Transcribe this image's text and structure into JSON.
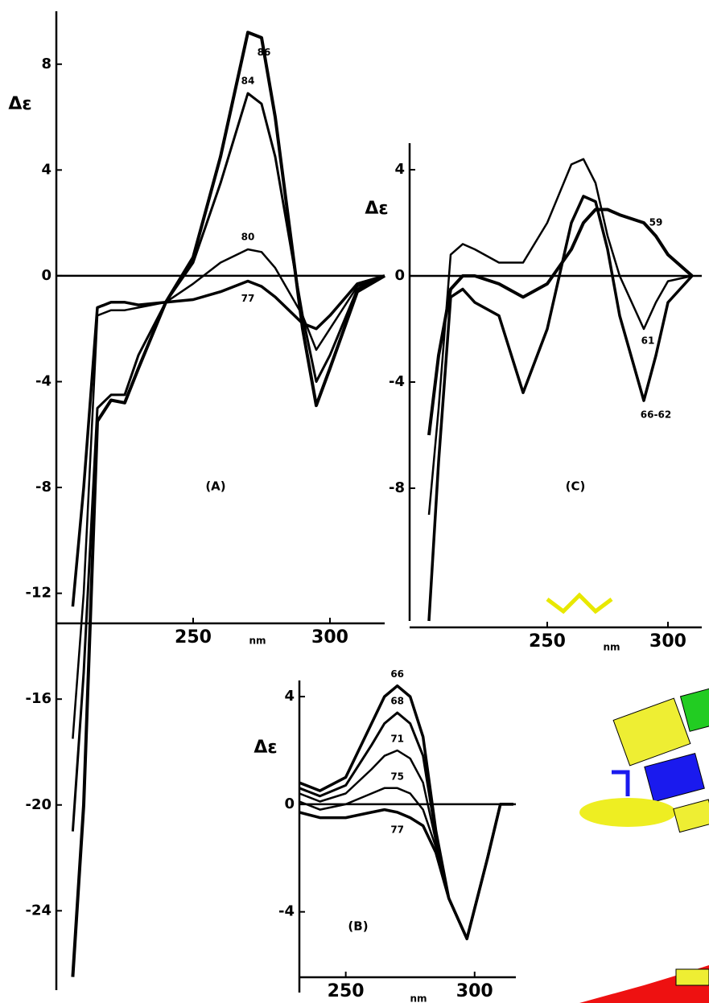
{
  "chart_data": [
    {
      "type": "line",
      "panel": "(A)",
      "y_label": "Δε",
      "x_label": "nm",
      "x": [
        206,
        210,
        215,
        220,
        225,
        230,
        240,
        250,
        260,
        270,
        275,
        280,
        290,
        295,
        300,
        310,
        320
      ],
      "xlim": [
        200,
        320
      ],
      "xticks": [
        250,
        300
      ],
      "ylim": [
        -27,
        10
      ],
      "yticks": [
        8,
        4,
        0,
        -4,
        -8,
        -12,
        -16,
        -20,
        -24
      ],
      "series": [
        {
          "name": "86",
          "color": "#000000",
          "values": [
            -26.5,
            -20,
            -5.5,
            -4.7,
            -4.8,
            -3.5,
            -1,
            0.7,
            4.5,
            9.2,
            9,
            6,
            -2,
            -4.9,
            -3.5,
            -0.6,
            0
          ]
        },
        {
          "name": "84",
          "color": "#000000",
          "values": [
            -21,
            -15,
            -5,
            -4.5,
            -4.5,
            -3,
            -1,
            0.5,
            3.5,
            6.9,
            6.5,
            4.5,
            -1.5,
            -4,
            -3,
            -0.5,
            0
          ]
        },
        {
          "name": "80",
          "color": "#000000",
          "values": [
            -17.5,
            -12,
            -1.5,
            -1.3,
            -1.3,
            -1.2,
            -1,
            -0.3,
            0.5,
            1,
            0.9,
            0.3,
            -1.5,
            -2.8,
            -2,
            -0.4,
            0
          ]
        },
        {
          "name": "77",
          "color": "#000000",
          "values": [
            -12.5,
            -8,
            -1.2,
            -1,
            -1,
            -1.1,
            -1,
            -0.9,
            -0.6,
            -0.2,
            -0.4,
            -0.8,
            -1.8,
            -2,
            -1.5,
            -0.3,
            0
          ]
        }
      ]
    },
    {
      "type": "line",
      "panel": "(C)",
      "y_label": "Δε",
      "x_label": "nm",
      "x": [
        201,
        205,
        210,
        215,
        220,
        230,
        240,
        250,
        260,
        265,
        270,
        275,
        280,
        290,
        295,
        300,
        310
      ],
      "xlim": [
        193,
        314
      ],
      "xticks": [
        250,
        300
      ],
      "ylim": [
        -13,
        5
      ],
      "yticks": [
        4,
        0,
        -4,
        -8
      ],
      "series": [
        {
          "name": "59",
          "color": "#000000",
          "values": [
            -6,
            -3,
            -0.5,
            0,
            0,
            -0.3,
            -0.8,
            -0.3,
            1,
            2,
            2.5,
            2.5,
            2.3,
            2,
            1.5,
            0.8,
            0
          ]
        },
        {
          "name": "61",
          "color": "#000000",
          "values": [
            -9,
            -5,
            0.8,
            1.2,
            1,
            0.5,
            0.5,
            2,
            4.2,
            4.4,
            3.5,
            1.5,
            0,
            -2,
            -1,
            -0.2,
            0
          ]
        },
        {
          "name": "66-62",
          "color": "#000000",
          "values": [
            -13,
            -7,
            -0.8,
            -0.5,
            -1,
            -1.5,
            -4.4,
            -2,
            2,
            3,
            2.8,
            1,
            -1.5,
            -4.7,
            -3,
            -1,
            0
          ]
        }
      ]
    },
    {
      "type": "line",
      "panel": "(B)",
      "y_label": "Δε",
      "x_label": "nm",
      "x": [
        232,
        240,
        250,
        260,
        265,
        270,
        275,
        280,
        285,
        290,
        297,
        305,
        310,
        315
      ],
      "xlim": [
        232,
        316
      ],
      "xticks": [
        250,
        300
      ],
      "ylim": [
        -7,
        4.6
      ],
      "yticks": [
        4,
        0,
        -4
      ],
      "series": [
        {
          "name": "66",
          "color": "#000000",
          "values": [
            0.8,
            0.5,
            1,
            3,
            4,
            4.4,
            4,
            2.5,
            -1,
            -3.5,
            -5,
            -2,
            0,
            0
          ]
        },
        {
          "name": "68",
          "color": "#000000",
          "values": [
            0.6,
            0.3,
            0.7,
            2.2,
            3,
            3.4,
            3,
            1.8,
            -1.2,
            -3.5,
            -5,
            -2,
            0,
            0
          ]
        },
        {
          "name": "71",
          "color": "#000000",
          "values": [
            0.4,
            0.1,
            0.4,
            1.3,
            1.8,
            2,
            1.7,
            0.8,
            -1.4,
            -3.5,
            -5,
            -2,
            0,
            0
          ]
        },
        {
          "name": "75",
          "color": "#000000",
          "values": [
            0.1,
            -0.2,
            0,
            0.4,
            0.6,
            0.6,
            0.4,
            -0.2,
            -1.6,
            -3.5,
            -5,
            -2,
            0,
            0
          ]
        },
        {
          "name": "77",
          "color": "#000000",
          "values": [
            -0.3,
            -0.5,
            -0.5,
            -0.3,
            -0.2,
            -0.3,
            -0.5,
            -0.8,
            -1.8,
            -3.5,
            -5,
            -2,
            0,
            0
          ]
        }
      ]
    }
  ]
}
